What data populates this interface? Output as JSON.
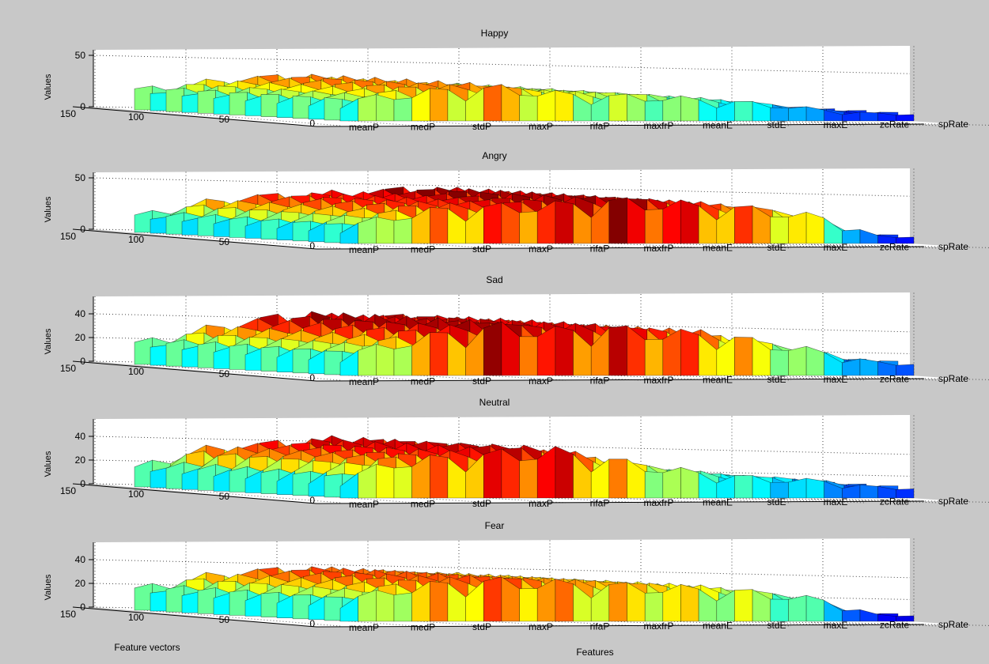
{
  "figure": {
    "background": "#c8c8c8",
    "panel_background": "#ffffff",
    "colormap": "jet",
    "bottom_labels": {
      "left": "Feature vectors",
      "center": "Features"
    }
  },
  "chart_data": [
    {
      "type": "surface3d",
      "title": "Happy",
      "zlabel": "Values",
      "zlim": [
        0,
        50
      ],
      "z_ticks": [
        "0",
        "50"
      ],
      "y_ticks": [
        "150",
        "100",
        "50",
        "0"
      ],
      "categories": [
        "meanP",
        "medP",
        "stdP",
        "maxP",
        "rifaP",
        "maxfrP",
        "meanE",
        "stdE",
        "maxE",
        "zcRate",
        "spRate"
      ],
      "approx_peak_per_feature": [
        22,
        28,
        34,
        36,
        30,
        27,
        26,
        22,
        18,
        12,
        8
      ],
      "grid": true
    },
    {
      "type": "surface3d",
      "title": "Angry",
      "zlabel": "Values",
      "zlim": [
        0,
        50
      ],
      "z_ticks": [
        "0",
        "50"
      ],
      "y_ticks": [
        "150",
        "100",
        "50",
        "0"
      ],
      "categories": [
        "meanP",
        "medP",
        "stdP",
        "maxP",
        "rifaP",
        "maxfrP",
        "meanE",
        "stdE",
        "maxE",
        "zcRate",
        "spRate"
      ],
      "approx_peak_per_feature": [
        18,
        30,
        38,
        40,
        42,
        46,
        44,
        40,
        36,
        28,
        8
      ],
      "grid": true
    },
    {
      "type": "surface3d",
      "title": "Sad",
      "zlabel": "Values",
      "zlim": [
        0,
        50
      ],
      "z_ticks": [
        "0",
        "20",
        "40"
      ],
      "y_ticks": [
        "150",
        "100",
        "50",
        "0"
      ],
      "categories": [
        "meanP",
        "medP",
        "stdP",
        "maxP",
        "rifaP",
        "maxfrP",
        "meanE",
        "stdE",
        "maxE",
        "zcRate",
        "spRate"
      ],
      "approx_peak_per_feature": [
        20,
        30,
        40,
        46,
        42,
        44,
        40,
        38,
        30,
        22,
        12
      ],
      "grid": true
    },
    {
      "type": "surface3d",
      "title": "Neutral",
      "zlabel": "Values",
      "zlim": [
        0,
        50
      ],
      "z_ticks": [
        "0",
        "20",
        "40"
      ],
      "y_ticks": [
        "150",
        "100",
        "50",
        "0"
      ],
      "categories": [
        "meanP",
        "medP",
        "stdP",
        "maxP",
        "rifaP",
        "maxfrP",
        "meanE",
        "stdE",
        "maxE",
        "zcRate",
        "spRate"
      ],
      "approx_peak_per_feature": [
        18,
        34,
        38,
        42,
        44,
        36,
        28,
        22,
        18,
        16,
        10
      ],
      "grid": true
    },
    {
      "type": "surface3d",
      "title": "Fear",
      "zlabel": "Values",
      "zlim": [
        0,
        50
      ],
      "z_ticks": [
        "0",
        "20",
        "40"
      ],
      "y_ticks": [
        "150",
        "100",
        "50",
        "0"
      ],
      "categories": [
        "meanP",
        "medP",
        "stdP",
        "maxP",
        "rifaP",
        "maxfrP",
        "meanE",
        "stdE",
        "maxE",
        "zcRate",
        "spRate"
      ],
      "approx_peak_per_feature": [
        20,
        30,
        36,
        38,
        36,
        34,
        32,
        30,
        26,
        20,
        6
      ],
      "grid": true
    }
  ]
}
